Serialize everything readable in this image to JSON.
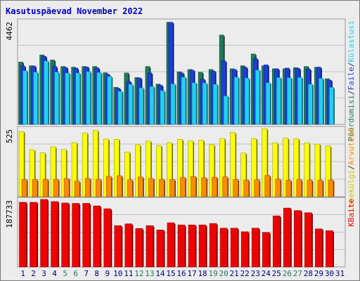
{
  "chart_data": {
    "title": "Kasutuspäevad November 2022",
    "type": "bar",
    "categories": [
      "1",
      "2",
      "3",
      "4",
      "5",
      "6",
      "7",
      "8",
      "9",
      "10",
      "11",
      "12",
      "13",
      "14",
      "15",
      "16",
      "17",
      "18",
      "19",
      "20",
      "21",
      "22",
      "23",
      "24",
      "25",
      "26",
      "27",
      "28",
      "29",
      "30",
      "31"
    ],
    "weekend_days": [
      "5",
      "6",
      "12",
      "13",
      "19",
      "20",
      "26",
      "27"
    ],
    "panels": [
      {
        "id": "top",
        "max_label": "4462",
        "ymax": 4462,
        "series": [
          {
            "name": "Pöördumisi",
            "color": "#1f7a5c",
            "values": [
              2690,
              2530,
              3000,
              2780,
              2500,
              2470,
              2500,
              2500,
              2230,
              1600,
              2220,
              2020,
              2500,
              1740,
              4410,
              2270,
              2370,
              2250,
              2370,
              3860,
              2400,
              2530,
              3040,
              2530,
              2400,
              2400,
              2450,
              2500,
              2470,
              1970,
              null
            ]
          },
          {
            "name": "Faile",
            "color": "#1c3fd6",
            "values": [
              2520,
              2520,
              2940,
              2500,
              2460,
              2430,
              2480,
              2440,
              2160,
              1560,
              1860,
              2000,
              2220,
              1690,
              4410,
              2220,
              2340,
              1950,
              2300,
              2740,
              2370,
              2470,
              2840,
              2570,
              2400,
              2430,
              2420,
              2390,
              2470,
              1910,
              null
            ]
          },
          {
            "name": "Külastusi",
            "color": "#22d0f2",
            "values": [
              2320,
              2260,
              2740,
              2260,
              2220,
              2220,
              2280,
              2240,
              2070,
              1430,
              1730,
              1580,
              1640,
              1460,
              1750,
              2040,
              1800,
              1790,
              1730,
              1230,
              2040,
              2000,
              2350,
              1800,
              2020,
              2020,
              2030,
              1740,
              1990,
              1600,
              null
            ]
          }
        ]
      },
      {
        "id": "middle",
        "max_label": "525",
        "ymax": 525,
        "series": [
          {
            "name": "Lehekülgi",
            "color": "#ffff00",
            "values": [
              502,
              362,
              338,
              384,
              364,
              416,
              490,
              510,
              444,
              442,
              344,
              400,
              428,
              394,
              416,
              442,
              430,
              435,
              401,
              449,
              494,
              336,
              448,
              525,
              414,
              451,
              447,
              415,
              405,
              391,
              null
            ]
          },
          {
            "name": "Arvuteid",
            "color": "#ff8c00",
            "values": [
              133,
              133,
              135,
              133,
              140,
              120,
              141,
              134,
              157,
              162,
              131,
              152,
              141,
              133,
              133,
              149,
              156,
              147,
              150,
              153,
              133,
              129,
              131,
              164,
              136,
              127,
              132,
              129,
              127,
              129,
              null
            ]
          }
        ]
      },
      {
        "id": "bottom",
        "max_label": "187733",
        "ymax": 187733,
        "series": [
          {
            "name": "KBaite",
            "color": "#ee0000",
            "values": [
              180000,
              180000,
              188000,
              182000,
              178000,
              177000,
              177000,
              170000,
              162000,
              115000,
              120000,
              107000,
              115000,
              103000,
              123000,
              117000,
              117000,
              117000,
              121000,
              108000,
              108000,
              98000,
              108000,
              96000,
              142000,
              164000,
              157000,
              151000,
              106000,
              101000,
              null
            ]
          }
        ]
      }
    ],
    "legend_right": {
      "top": [
        "Pöördumisi",
        "/",
        "Faile",
        "/",
        "Külastusi"
      ],
      "middle": [
        "Lehekülgi",
        "/",
        "Arvuteid"
      ],
      "bottom": [
        "KBaite"
      ]
    },
    "colors": {
      "background": "#ececec",
      "panel_bg": "#ececec",
      "grid": "#999999",
      "title": "#0000cc",
      "weekday_label": "#000080",
      "weekend_label": "#1f7a5c",
      "axis_label": "#000000"
    }
  }
}
